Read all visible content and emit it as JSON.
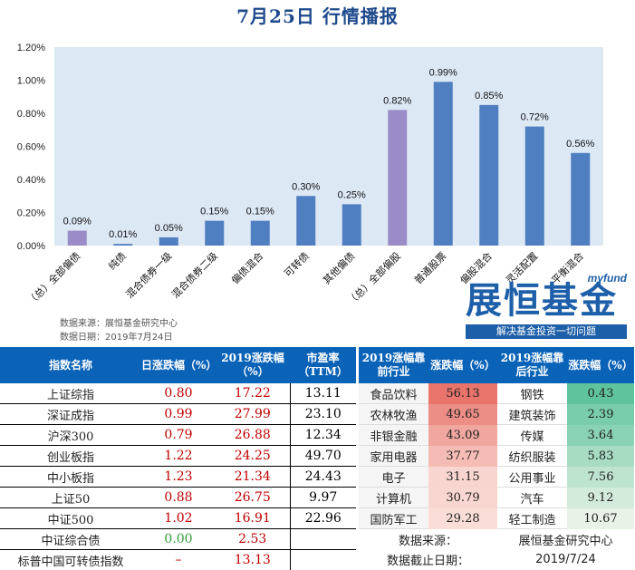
{
  "title": "7月25日 行情播报",
  "chart_data": {
    "type": "bar",
    "categories": [
      "（总）全部偏债",
      "纯债",
      "混合债券一级",
      "混合债券二级",
      "偏债混合",
      "可转债",
      "其他偏债",
      "（总）全部偏股",
      "普通股票",
      "偏股混合",
      "灵活配置",
      "平衡混合"
    ],
    "values": [
      0.09,
      0.01,
      0.05,
      0.15,
      0.15,
      0.3,
      0.25,
      0.82,
      0.99,
      0.85,
      0.72,
      0.56
    ],
    "value_labels": [
      "0.09%",
      "0.01%",
      "0.05%",
      "0.15%",
      "0.15%",
      "0.30%",
      "0.25%",
      "0.82%",
      "0.99%",
      "0.85%",
      "0.72%",
      "0.56%"
    ],
    "highlight_indices": [
      0,
      7
    ],
    "ylim": [
      0,
      1.2
    ],
    "yticks": [
      "0.00%",
      "0.20%",
      "0.40%",
      "0.60%",
      "0.80%",
      "1.00%",
      "1.20%"
    ],
    "colors": {
      "bar": "#4f7fc0",
      "highlight": "#9a8cc6",
      "plot_bg": "#dde8f5"
    },
    "grid": false
  },
  "notes": {
    "source": "数据来源：展恒基金研究中心",
    "date": "数据日期：2019年7月24日"
  },
  "logo": {
    "small": "myfund",
    "main": "展恒基金",
    "slogan": "解决基金投资一切问题"
  },
  "index_table": {
    "headers": [
      "指数名称",
      "日涨跌幅（%）",
      "2019涨跌幅（%）",
      "市盈率（TTM）"
    ],
    "rows": [
      {
        "name": "上证综指",
        "day": "0.80",
        "ytd": "17.22",
        "pe": "13.11"
      },
      {
        "name": "深证成指",
        "day": "0.99",
        "ytd": "27.99",
        "pe": "23.10"
      },
      {
        "name": "沪深300",
        "day": "0.79",
        "ytd": "26.88",
        "pe": "12.34"
      },
      {
        "name": "创业板指",
        "day": "1.22",
        "ytd": "24.25",
        "pe": "49.70"
      },
      {
        "name": "中小板指",
        "day": "1.23",
        "ytd": "21.34",
        "pe": "24.43"
      },
      {
        "name": "上证50",
        "day": "0.88",
        "ytd": "26.75",
        "pe": "9.97"
      },
      {
        "name": "中证500",
        "day": "1.02",
        "ytd": "16.91",
        "pe": "22.96"
      },
      {
        "name": "中证综合债",
        "day": "0.00",
        "ytd": "2.53",
        "pe": ""
      },
      {
        "name": "标普中国可转债指数",
        "day": "–",
        "ytd": "13.13",
        "pe": ""
      }
    ]
  },
  "sector_table": {
    "headers": [
      "2019涨幅靠前行业",
      "涨跌幅（%）",
      "2019涨幅靠后行业",
      "涨跌幅（%）"
    ],
    "rows": [
      {
        "top": "食品饮料",
        "top_val": "56.13",
        "bottom": "钢铁",
        "bottom_val": "0.43"
      },
      {
        "top": "农林牧渔",
        "top_val": "49.65",
        "bottom": "建筑装饰",
        "bottom_val": "2.39"
      },
      {
        "top": "非银金融",
        "top_val": "43.09",
        "bottom": "传媒",
        "bottom_val": "3.64"
      },
      {
        "top": "家用电器",
        "top_val": "37.77",
        "bottom": "纺织服装",
        "bottom_val": "5.83"
      },
      {
        "top": "电子",
        "top_val": "31.15",
        "bottom": "公用事业",
        "bottom_val": "7.56"
      },
      {
        "top": "计算机",
        "top_val": "30.79",
        "bottom": "汽车",
        "bottom_val": "9.12"
      },
      {
        "top": "国防军工",
        "top_val": "29.28",
        "bottom": "轻工制造",
        "bottom_val": "10.67"
      }
    ],
    "footer": {
      "source_label": "数据来源：",
      "source_value": "展恒基金研究中心",
      "date_label": "数据截止日期：",
      "date_value": "2019/7/24"
    },
    "colors": {
      "top_high": "#e8746c",
      "top_low": "#f9ddd6",
      "bottom_low": "#5fc49d",
      "bottom_high": "#e8f2e6"
    }
  }
}
